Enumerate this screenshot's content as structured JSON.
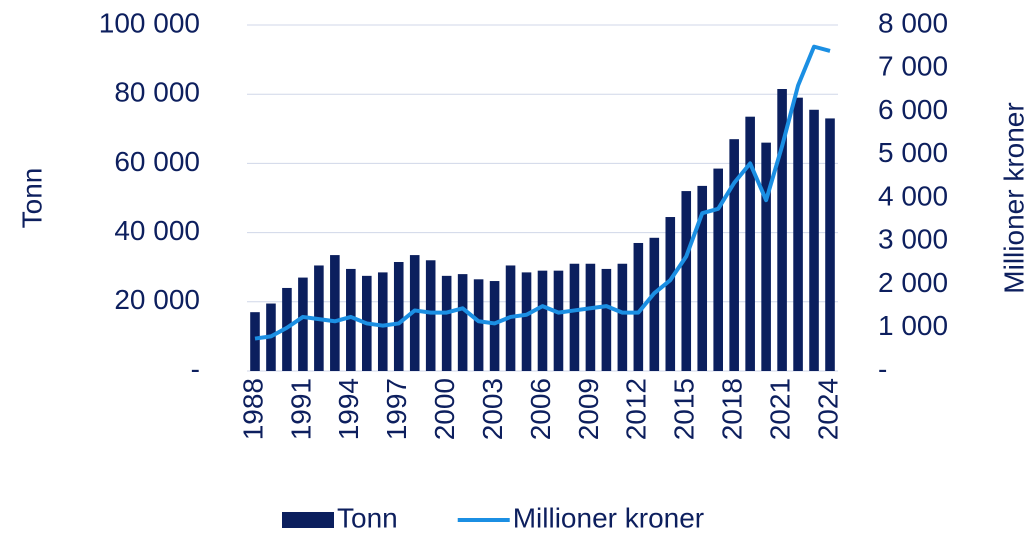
{
  "chart_data": {
    "type": "bar",
    "categories": [
      "1988",
      null,
      null,
      "1991",
      null,
      null,
      "1994",
      null,
      null,
      "1997",
      null,
      null,
      "2000",
      null,
      null,
      "2003",
      null,
      null,
      "2006",
      null,
      null,
      "2009",
      null,
      null,
      "2012",
      null,
      null,
      "2015",
      null,
      null,
      "2018",
      null,
      null,
      "2021",
      null,
      null,
      "2024"
    ],
    "series": [
      {
        "name": "Tonn",
        "type": "bar",
        "color": "#0b1f5e",
        "values": [
          17000,
          19500,
          24000,
          27000,
          30500,
          33500,
          29500,
          27500,
          28500,
          31500,
          33500,
          32000,
          27500,
          28000,
          26500,
          26000,
          30500,
          28500,
          29000,
          29000,
          31000,
          31000,
          29500,
          31000,
          37000,
          38500,
          44500,
          52000,
          53500,
          58500,
          67000,
          73500,
          66000,
          81500,
          79000,
          75500,
          73000
        ]
      },
      {
        "name": "Millioner kroner",
        "type": "line",
        "axis": "y2",
        "color": "#1b8fe3",
        "values": [
          750,
          800,
          1000,
          1250,
          1200,
          1150,
          1250,
          1100,
          1050,
          1100,
          1400,
          1350,
          1350,
          1450,
          1150,
          1100,
          1250,
          1300,
          1500,
          1350,
          1400,
          1450,
          1500,
          1350,
          1350,
          1800,
          2100,
          2650,
          3650,
          3750,
          4350,
          4800,
          3950,
          5200,
          6600,
          7500,
          7400
        ]
      }
    ],
    "y_label": "Tonn",
    "y2_label": "Millioner kroner",
    "ylim": [
      0,
      100000
    ],
    "yticks": [
      {
        "value": 0,
        "label": "-"
      },
      {
        "value": 20000,
        "label": "20 000"
      },
      {
        "value": 40000,
        "label": "40 000"
      },
      {
        "value": 60000,
        "label": "60 000"
      },
      {
        "value": 80000,
        "label": "80 000"
      },
      {
        "value": 100000,
        "label": "100 000"
      }
    ],
    "y2lim": [
      0,
      8000
    ],
    "y2ticks": [
      {
        "value": 0,
        "label": "-"
      },
      {
        "value": 1000,
        "label": "1 000"
      },
      {
        "value": 2000,
        "label": "2 000"
      },
      {
        "value": 3000,
        "label": "3 000"
      },
      {
        "value": 4000,
        "label": "4 000"
      },
      {
        "value": 5000,
        "label": "5 000"
      },
      {
        "value": 6000,
        "label": "6 000"
      },
      {
        "value": 7000,
        "label": "7 000"
      },
      {
        "value": 8000,
        "label": "8 000"
      }
    ],
    "grid": true,
    "legend": "bottom"
  }
}
